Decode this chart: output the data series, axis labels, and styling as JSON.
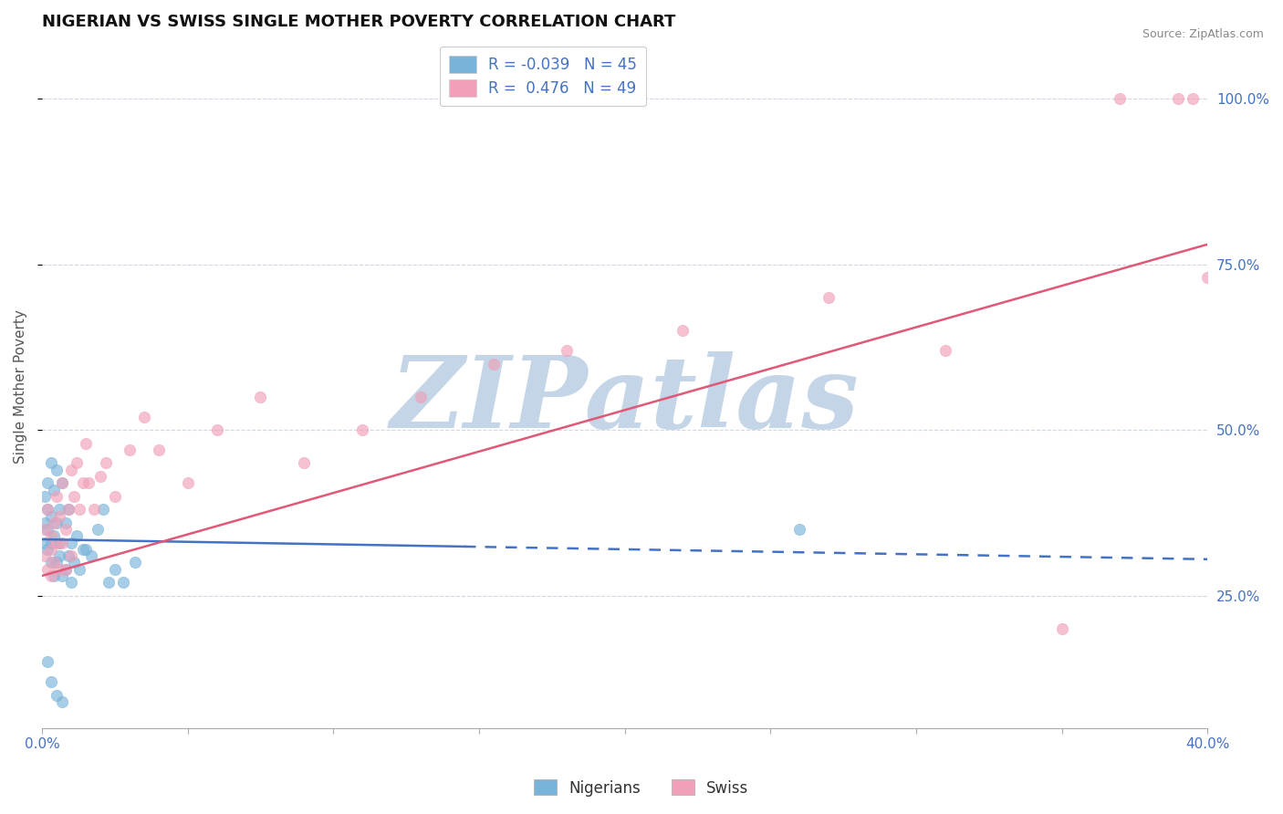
{
  "title": "NIGERIAN VS SWISS SINGLE MOTHER POVERTY CORRELATION CHART",
  "source": "Source: ZipAtlas.com",
  "ylabel": "Single Mother Poverty",
  "watermark": "ZIPatlas",
  "legend_entries": [
    {
      "label": "R = -0.039   N = 45",
      "color": "#7ab3d9"
    },
    {
      "label": "R =  0.476   N = 49",
      "color": "#f0a0b8"
    }
  ],
  "bottom_legend": [
    "Nigerians",
    "Swiss"
  ],
  "xlim": [
    0.0,
    0.4
  ],
  "ylim": [
    0.05,
    1.08
  ],
  "yticks": [
    0.25,
    0.5,
    0.75,
    1.0
  ],
  "ytick_labels": [
    "25.0%",
    "50.0%",
    "75.0%",
    "100.0%"
  ],
  "xticks": [
    0.0,
    0.05,
    0.1,
    0.15,
    0.2,
    0.25,
    0.3,
    0.35,
    0.4
  ],
  "xtick_labels": [
    "0.0%",
    "",
    "",
    "",
    "",
    "",
    "",
    "",
    "40.0%"
  ],
  "nigerian_color": "#7ab3d9",
  "swiss_color": "#f0a0b8",
  "nigerian_line_color": "#4472c4",
  "swiss_line_color": "#e05878",
  "background_color": "#ffffff",
  "grid_color": "#d0d8e8",
  "title_fontsize": 13,
  "axis_label_fontsize": 11,
  "tick_fontsize": 11,
  "watermark_color": "#c5d5e8",
  "watermark_fontsize": 80,
  "right_axis_color": "#4472c4",
  "nigerian_x": [
    0.001,
    0.001,
    0.001,
    0.002,
    0.002,
    0.002,
    0.002,
    0.003,
    0.003,
    0.003,
    0.003,
    0.004,
    0.004,
    0.004,
    0.005,
    0.005,
    0.005,
    0.006,
    0.006,
    0.006,
    0.007,
    0.007,
    0.008,
    0.008,
    0.009,
    0.009,
    0.01,
    0.01,
    0.011,
    0.012,
    0.013,
    0.014,
    0.015,
    0.017,
    0.019,
    0.021,
    0.023,
    0.025,
    0.028,
    0.032,
    0.002,
    0.003,
    0.005,
    0.007,
    0.26
  ],
  "nigerian_y": [
    0.33,
    0.36,
    0.4,
    0.32,
    0.35,
    0.42,
    0.38,
    0.3,
    0.37,
    0.33,
    0.45,
    0.41,
    0.34,
    0.28,
    0.36,
    0.3,
    0.44,
    0.38,
    0.33,
    0.31,
    0.42,
    0.28,
    0.36,
    0.29,
    0.31,
    0.38,
    0.33,
    0.27,
    0.3,
    0.34,
    0.29,
    0.32,
    0.32,
    0.31,
    0.35,
    0.38,
    0.27,
    0.29,
    0.27,
    0.3,
    0.15,
    0.12,
    0.1,
    0.09,
    0.35
  ],
  "swiss_x": [
    0.001,
    0.001,
    0.002,
    0.002,
    0.003,
    0.003,
    0.003,
    0.004,
    0.004,
    0.005,
    0.005,
    0.006,
    0.006,
    0.007,
    0.007,
    0.008,
    0.008,
    0.009,
    0.01,
    0.01,
    0.011,
    0.012,
    0.013,
    0.014,
    0.015,
    0.016,
    0.018,
    0.02,
    0.022,
    0.025,
    0.03,
    0.035,
    0.04,
    0.05,
    0.06,
    0.075,
    0.09,
    0.11,
    0.13,
    0.155,
    0.18,
    0.22,
    0.27,
    0.31,
    0.35,
    0.37,
    0.39,
    0.395,
    0.4
  ],
  "swiss_y": [
    0.31,
    0.35,
    0.29,
    0.38,
    0.32,
    0.34,
    0.28,
    0.36,
    0.3,
    0.33,
    0.4,
    0.29,
    0.37,
    0.33,
    0.42,
    0.35,
    0.29,
    0.38,
    0.44,
    0.31,
    0.4,
    0.45,
    0.38,
    0.42,
    0.48,
    0.42,
    0.38,
    0.43,
    0.45,
    0.4,
    0.47,
    0.52,
    0.47,
    0.42,
    0.5,
    0.55,
    0.45,
    0.5,
    0.55,
    0.6,
    0.62,
    0.65,
    0.7,
    0.62,
    0.2,
    1.0,
    1.0,
    1.0,
    0.73
  ],
  "nig_line_x0": 0.0,
  "nig_line_x1": 0.4,
  "nig_line_y0": 0.335,
  "nig_line_y1": 0.305,
  "nig_line_solid_end": 0.145,
  "swi_line_x0": 0.0,
  "swi_line_x1": 0.4,
  "swi_line_y0": 0.28,
  "swi_line_y1": 0.78
}
